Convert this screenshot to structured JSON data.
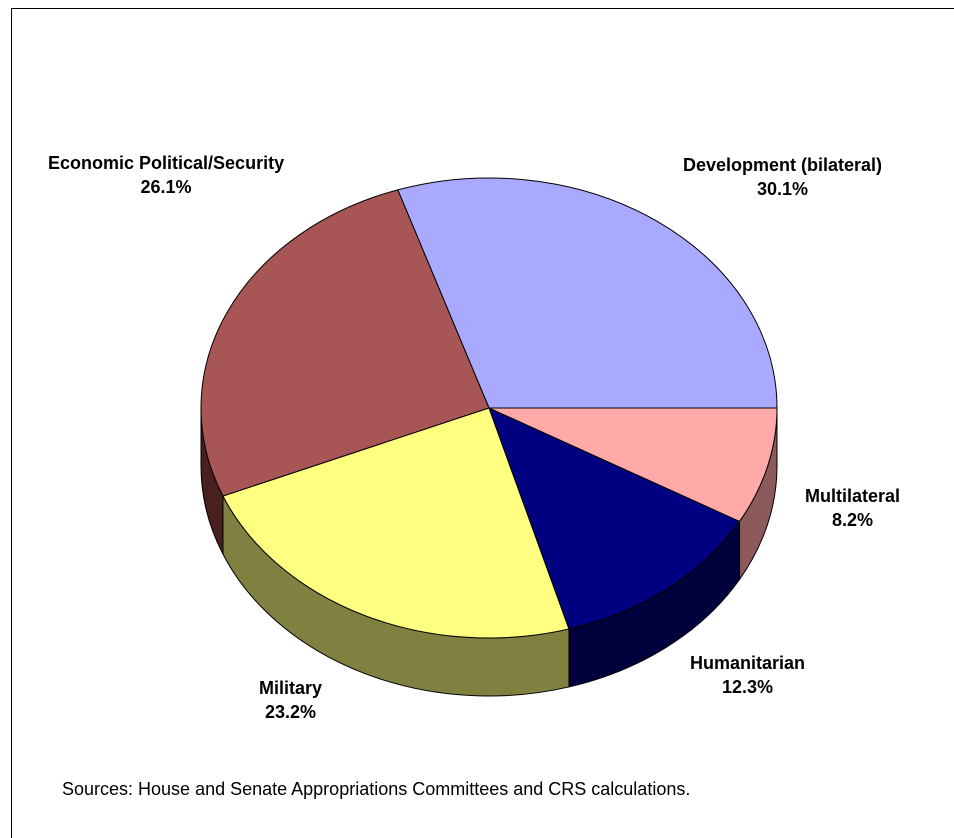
{
  "chart_data": {
    "type": "pie",
    "title": "",
    "slices": [
      {
        "label": "Development (bilateral)",
        "value": 30.1,
        "value_label": "30.1%",
        "color": "#A9A9FF",
        "side_color": "#5C5C8C"
      },
      {
        "label": "Economic Political/Security",
        "value": 26.1,
        "value_label": "26.1%",
        "color": "#A85555",
        "side_color": "#4A1F1F"
      },
      {
        "label": "Military",
        "value": 23.2,
        "value_label": "23.2%",
        "color": "#FFFF80",
        "side_color": "#808040"
      },
      {
        "label": "Humanitarian",
        "value": 12.3,
        "value_label": "12.3%",
        "color": "#000080",
        "side_color": "#00003C"
      },
      {
        "label": "Multilateral",
        "value": 8.2,
        "value_label": "8.2%",
        "color": "#FFA9A9",
        "side_color": "#8C5A5A"
      }
    ],
    "style": "3d-tilted",
    "start": "3-o'clock, counter-clockwise"
  },
  "source_note": "Sources: House and Senate Appropriations Committees and CRS calculations."
}
